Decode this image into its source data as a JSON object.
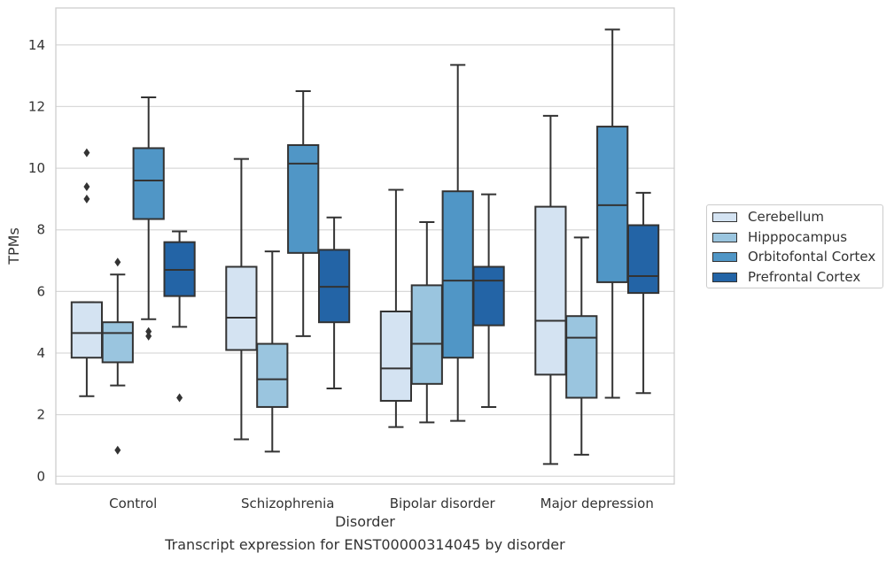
{
  "colors": {
    "Cerebellum": "#d4e3f2",
    "Hipppocampus": "#9ac5df",
    "Orbitofontal Cortex": "#5096c6",
    "Prefrontal Cortex": "#2364a6",
    "grid": "#d9d9d9",
    "box_line": "#333333"
  },
  "caption": "Transcript expression for ENST00000314045 by disorder",
  "legend": {
    "placement": "right",
    "items": [
      "Cerebellum",
      "Hipppocampus",
      "Orbitofontal Cortex",
      "Prefrontal Cortex"
    ]
  },
  "chart_data": {
    "type": "boxplot",
    "xlabel": "Disorder",
    "ylabel": "TPMs",
    "categories": [
      "Control",
      "Schizophrenia",
      "Bipolar disorder",
      "Major depression"
    ],
    "ylim": [
      -0.25,
      15.2
    ],
    "yticks": [
      0,
      2,
      4,
      6,
      8,
      10,
      12,
      14
    ],
    "grid": "horizontal",
    "series": [
      {
        "name": "Cerebellum",
        "boxes": [
          {
            "whisker_low": 2.6,
            "q1": 3.85,
            "median": 4.65,
            "q3": 5.65,
            "whisker_high": 5.65,
            "outliers": [
              10.5,
              9.4,
              9.0
            ]
          },
          {
            "whisker_low": 1.2,
            "q1": 4.1,
            "median": 5.15,
            "q3": 6.8,
            "whisker_high": 10.3,
            "outliers": []
          },
          {
            "whisker_low": 1.6,
            "q1": 2.45,
            "median": 3.5,
            "q3": 5.35,
            "whisker_high": 9.3,
            "outliers": []
          },
          {
            "whisker_low": 0.4,
            "q1": 3.3,
            "median": 5.05,
            "q3": 8.75,
            "whisker_high": 11.7,
            "outliers": []
          }
        ]
      },
      {
        "name": "Hipppocampus",
        "boxes": [
          {
            "whisker_low": 2.95,
            "q1": 3.7,
            "median": 4.65,
            "q3": 5.0,
            "whisker_high": 6.55,
            "outliers": [
              6.95,
              0.85
            ]
          },
          {
            "whisker_low": 0.8,
            "q1": 2.25,
            "median": 3.15,
            "q3": 4.3,
            "whisker_high": 7.3,
            "outliers": []
          },
          {
            "whisker_low": 1.75,
            "q1": 3.0,
            "median": 4.3,
            "q3": 6.2,
            "whisker_high": 8.25,
            "outliers": []
          },
          {
            "whisker_low": 0.7,
            "q1": 2.55,
            "median": 4.5,
            "q3": 5.2,
            "whisker_high": 7.75,
            "outliers": []
          }
        ]
      },
      {
        "name": "Orbitofontal Cortex",
        "boxes": [
          {
            "whisker_low": 5.1,
            "q1": 8.35,
            "median": 9.6,
            "q3": 10.65,
            "whisker_high": 12.3,
            "outliers": [
              4.7,
              4.55
            ]
          },
          {
            "whisker_low": 4.55,
            "q1": 7.25,
            "median": 10.15,
            "q3": 10.75,
            "whisker_high": 12.5,
            "outliers": []
          },
          {
            "whisker_low": 1.8,
            "q1": 3.85,
            "median": 6.35,
            "q3": 9.25,
            "whisker_high": 13.35,
            "outliers": []
          },
          {
            "whisker_low": 2.55,
            "q1": 6.3,
            "median": 8.8,
            "q3": 11.35,
            "whisker_high": 14.5,
            "outliers": []
          }
        ]
      },
      {
        "name": "Prefrontal Cortex",
        "boxes": [
          {
            "whisker_low": 4.85,
            "q1": 5.85,
            "median": 6.7,
            "q3": 7.6,
            "whisker_high": 7.95,
            "outliers": [
              2.55
            ]
          },
          {
            "whisker_low": 2.85,
            "q1": 5.0,
            "median": 6.15,
            "q3": 7.35,
            "whisker_high": 8.4,
            "outliers": []
          },
          {
            "whisker_low": 2.25,
            "q1": 4.9,
            "median": 6.35,
            "q3": 6.8,
            "whisker_high": 9.15,
            "outliers": []
          },
          {
            "whisker_low": 2.7,
            "q1": 5.95,
            "median": 6.5,
            "q3": 8.15,
            "whisker_high": 9.2,
            "outliers": []
          }
        ]
      }
    ]
  }
}
